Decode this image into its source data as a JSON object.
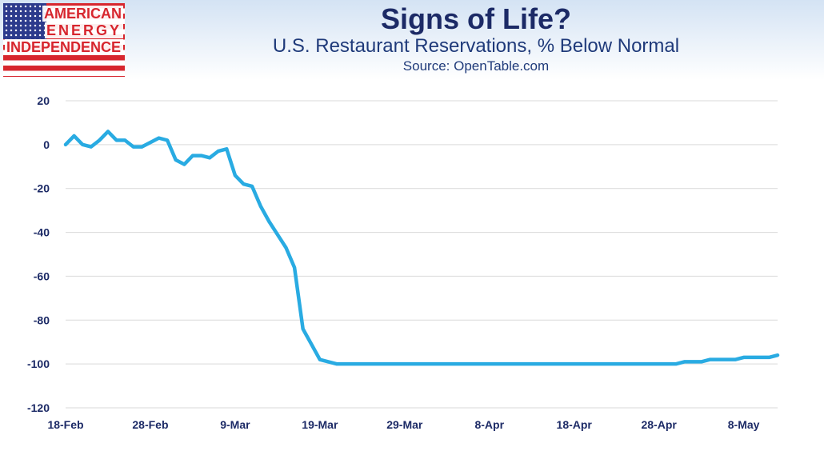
{
  "logo": {
    "line1": "AMERICAN",
    "line2": "ENERGY",
    "line3": "INDEPENDENCE",
    "colors": {
      "red": "#d7262e",
      "blue": "#2c3a8c"
    }
  },
  "chart_data": {
    "type": "line",
    "title": "Signs of Life?",
    "subtitle": "U.S. Restaurant Reservations, % Below Normal",
    "source": "Source: OpenTable.com",
    "ylim": [
      -120,
      20
    ],
    "yticks": [
      20,
      0,
      -20,
      -40,
      -60,
      -80,
      -100,
      -120
    ],
    "xticks": [
      "18-Feb",
      "28-Feb",
      "9-Mar",
      "19-Mar",
      "29-Mar",
      "8-Apr",
      "18-Apr",
      "28-Apr",
      "8-May"
    ],
    "grid": true,
    "line_color": "#29abe2",
    "series": [
      {
        "x": [
          "18-Feb",
          "19-Feb",
          "20-Feb",
          "21-Feb",
          "22-Feb",
          "23-Feb",
          "24-Feb",
          "25-Feb",
          "26-Feb",
          "27-Feb",
          "28-Feb",
          "29-Feb",
          "1-Mar",
          "2-Mar",
          "3-Mar",
          "4-Mar",
          "5-Mar",
          "6-Mar",
          "7-Mar",
          "8-Mar",
          "9-Mar",
          "10-Mar",
          "11-Mar",
          "12-Mar",
          "13-Mar",
          "14-Mar",
          "15-Mar",
          "16-Mar",
          "17-Mar",
          "18-Mar",
          "19-Mar",
          "20-Mar",
          "21-Mar",
          "22-Mar",
          "23-Mar",
          "24-Mar",
          "25-Mar",
          "26-Mar",
          "27-Mar",
          "28-Mar",
          "29-Mar",
          "30-Mar",
          "31-Mar",
          "1-Apr",
          "2-Apr",
          "3-Apr",
          "4-Apr",
          "5-Apr",
          "6-Apr",
          "7-Apr",
          "8-Apr",
          "9-Apr",
          "10-Apr",
          "11-Apr",
          "12-Apr",
          "13-Apr",
          "14-Apr",
          "15-Apr",
          "16-Apr",
          "17-Apr",
          "18-Apr",
          "19-Apr",
          "20-Apr",
          "21-Apr",
          "22-Apr",
          "23-Apr",
          "24-Apr",
          "25-Apr",
          "26-Apr",
          "27-Apr",
          "28-Apr",
          "29-Apr",
          "30-Apr",
          "1-May",
          "2-May",
          "3-May",
          "4-May",
          "5-May",
          "6-May",
          "7-May",
          "8-May",
          "9-May",
          "10-May",
          "11-May",
          "12-May"
        ],
        "values": [
          0,
          4,
          0,
          -1,
          2,
          6,
          2,
          2,
          -1,
          -1,
          1,
          3,
          2,
          -7,
          -9,
          -5,
          -5,
          -6,
          -3,
          -2,
          -14,
          -18,
          -19,
          -28,
          -35,
          -41,
          -47,
          -56,
          -84,
          -91,
          -98,
          -99,
          -100,
          -100,
          -100,
          -100,
          -100,
          -100,
          -100,
          -100,
          -100,
          -100,
          -100,
          -100,
          -100,
          -100,
          -100,
          -100,
          -100,
          -100,
          -100,
          -100,
          -100,
          -100,
          -100,
          -100,
          -100,
          -100,
          -100,
          -100,
          -100,
          -100,
          -100,
          -100,
          -100,
          -100,
          -100,
          -100,
          -100,
          -100,
          -100,
          -100,
          -100,
          -99,
          -99,
          -99,
          -98,
          -98,
          -98,
          -98,
          -97,
          -97,
          -97,
          -97,
          -96
        ]
      }
    ]
  }
}
